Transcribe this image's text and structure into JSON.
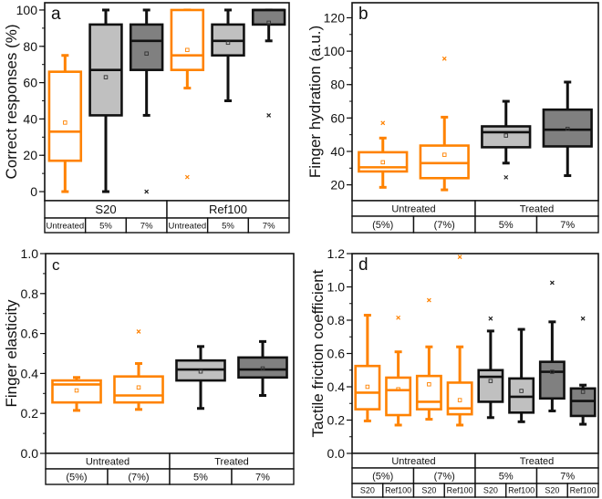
{
  "colors": {
    "orange": "#ff8200",
    "light": "#c0c0c0",
    "dark": "#808080",
    "black": "#111111"
  },
  "chart_data": [
    {
      "type": "box",
      "panel_label": "a",
      "ylabel": "Correct responses (%)",
      "ylim": [
        -5,
        104
      ],
      "ticks": [
        0,
        20,
        40,
        60,
        80,
        100
      ],
      "tick_labels": [
        "0",
        "20",
        "40",
        "60",
        "80",
        "100"
      ],
      "minor_step": 10,
      "category_rows": [
        [
          "S20",
          "Ref100"
        ],
        [
          "Untreated",
          "5%",
          "7%",
          "Untreated",
          "5%",
          "7%"
        ]
      ],
      "boxes": [
        {
          "style": "orange",
          "min": 0,
          "q1": 17,
          "median": 33,
          "q3": 66,
          "max": 75,
          "mean": 38,
          "outliers": []
        },
        {
          "style": "light",
          "min": 0,
          "q1": 42,
          "median": 67,
          "q3": 92,
          "max": 100,
          "mean": 63,
          "outliers": []
        },
        {
          "style": "dark",
          "min": 42,
          "q1": 67,
          "median": 83,
          "q3": 92,
          "max": 100,
          "mean": 76,
          "outliers": [
            0
          ]
        },
        {
          "style": "orange",
          "min": 57,
          "q1": 67,
          "median": 75,
          "q3": 100,
          "max": 100,
          "mean": 78,
          "outliers": [
            8
          ]
        },
        {
          "style": "light",
          "min": 50,
          "q1": 75,
          "median": 83,
          "q3": 92,
          "max": 100,
          "mean": 82,
          "outliers": []
        },
        {
          "style": "dark",
          "min": 83,
          "q1": 92,
          "median": 100,
          "q3": 100,
          "max": 100,
          "mean": 93,
          "outliers": [
            42
          ]
        }
      ]
    },
    {
      "type": "box",
      "panel_label": "b",
      "ylabel": "Finger hydration (a.u.)",
      "ylim": [
        10.5,
        129
      ],
      "ticks": [
        20,
        40,
        60,
        80,
        100,
        120
      ],
      "tick_labels": [
        "20",
        "40",
        "60",
        "80",
        "100",
        "120"
      ],
      "minor_step": 10,
      "category_rows": [
        [
          "Untreated",
          "Treated"
        ],
        [
          "(5%)",
          "(7%)",
          "5%",
          "7%"
        ]
      ],
      "boxes": [
        {
          "style": "orange",
          "min": 18.5,
          "q1": 28,
          "median": 30.5,
          "q3": 39.5,
          "max": 48,
          "mean": 33.5,
          "outliers": [
            57
          ]
        },
        {
          "style": "orange",
          "min": 17,
          "q1": 24,
          "median": 33,
          "q3": 43.5,
          "max": 60.5,
          "mean": 38,
          "outliers": [
            95.5
          ]
        },
        {
          "style": "light",
          "min": 33,
          "q1": 42.5,
          "median": 51.5,
          "q3": 55,
          "max": 70,
          "mean": 49.5,
          "outliers": [
            24.5
          ]
        },
        {
          "style": "dark",
          "min": 25.5,
          "q1": 43,
          "median": 53,
          "q3": 65,
          "max": 81.5,
          "mean": 53.5,
          "outliers": []
        }
      ]
    },
    {
      "type": "box",
      "panel_label": "c",
      "ylabel": "Finger elasticity",
      "ylim": [
        0,
        1.0
      ],
      "ticks": [
        0,
        0.2,
        0.4,
        0.6,
        0.8,
        1.0
      ],
      "tick_labels": [
        "0.0",
        "0.2",
        "0.4",
        "0.6",
        "0.8",
        "1.0"
      ],
      "minor_step": 0.1,
      "category_rows": [
        [
          "Untreated",
          "Treated"
        ],
        [
          "(5%)",
          "(7%)",
          "5%",
          "7%"
        ]
      ],
      "boxes": [
        {
          "style": "orange",
          "min": 0.215,
          "q1": 0.255,
          "median": 0.345,
          "q3": 0.365,
          "max": 0.38,
          "mean": 0.315,
          "outliers": []
        },
        {
          "style": "orange",
          "min": 0.22,
          "q1": 0.255,
          "median": 0.29,
          "q3": 0.385,
          "max": 0.45,
          "mean": 0.33,
          "outliers": [
            0.61
          ]
        },
        {
          "style": "light",
          "min": 0.225,
          "q1": 0.365,
          "median": 0.42,
          "q3": 0.465,
          "max": 0.535,
          "mean": 0.41,
          "outliers": []
        },
        {
          "style": "dark",
          "min": 0.29,
          "q1": 0.38,
          "median": 0.42,
          "q3": 0.48,
          "max": 0.56,
          "mean": 0.425,
          "outliers": []
        }
      ]
    },
    {
      "type": "box",
      "panel_label": "d",
      "ylabel": "Tactile friction coefficient",
      "ylim": [
        0,
        1.2
      ],
      "ticks": [
        0,
        0.2,
        0.4,
        0.6,
        0.8,
        1.0,
        1.2
      ],
      "tick_labels": [
        "0.0",
        "0.2",
        "0.4",
        "0.6",
        "0.8",
        "1.0",
        "1.2"
      ],
      "minor_step": 0.1,
      "category_rows": [
        [
          "Untreated",
          "Treated"
        ],
        [
          "(5%)",
          "(7%)",
          "5%",
          "7%"
        ],
        [
          "S20",
          "Ref100",
          "S20",
          "Ref100",
          "S20",
          "Ref100",
          "S20",
          "Ref100"
        ]
      ],
      "boxes": [
        {
          "style": "orange",
          "min": 0.195,
          "q1": 0.265,
          "median": 0.365,
          "q3": 0.525,
          "max": 0.83,
          "mean": 0.4,
          "outliers": []
        },
        {
          "style": "orange",
          "min": 0.17,
          "q1": 0.23,
          "median": 0.38,
          "q3": 0.455,
          "max": 0.61,
          "mean": 0.385,
          "outliers": [
            0.815
          ]
        },
        {
          "style": "orange",
          "min": 0.205,
          "q1": 0.265,
          "median": 0.31,
          "q3": 0.465,
          "max": 0.64,
          "mean": 0.415,
          "outliers": [
            0.92
          ]
        },
        {
          "style": "orange",
          "min": 0.17,
          "q1": 0.235,
          "median": 0.27,
          "q3": 0.425,
          "max": 0.64,
          "mean": 0.32,
          "outliers": [
            1.18
          ]
        },
        {
          "style": "light",
          "min": 0.215,
          "q1": 0.31,
          "median": 0.46,
          "q3": 0.5,
          "max": 0.735,
          "mean": 0.435,
          "outliers": [
            0.81
          ]
        },
        {
          "style": "light",
          "min": 0.19,
          "q1": 0.245,
          "median": 0.34,
          "q3": 0.45,
          "max": 0.745,
          "mean": 0.375,
          "outliers": []
        },
        {
          "style": "dark",
          "min": 0.255,
          "q1": 0.33,
          "median": 0.49,
          "q3": 0.55,
          "max": 0.79,
          "mean": 0.49,
          "outliers": [
            1.025
          ]
        },
        {
          "style": "dark",
          "min": 0.175,
          "q1": 0.225,
          "median": 0.315,
          "q3": 0.39,
          "max": 0.41,
          "mean": 0.37,
          "outliers": [
            0.81
          ]
        }
      ]
    }
  ]
}
